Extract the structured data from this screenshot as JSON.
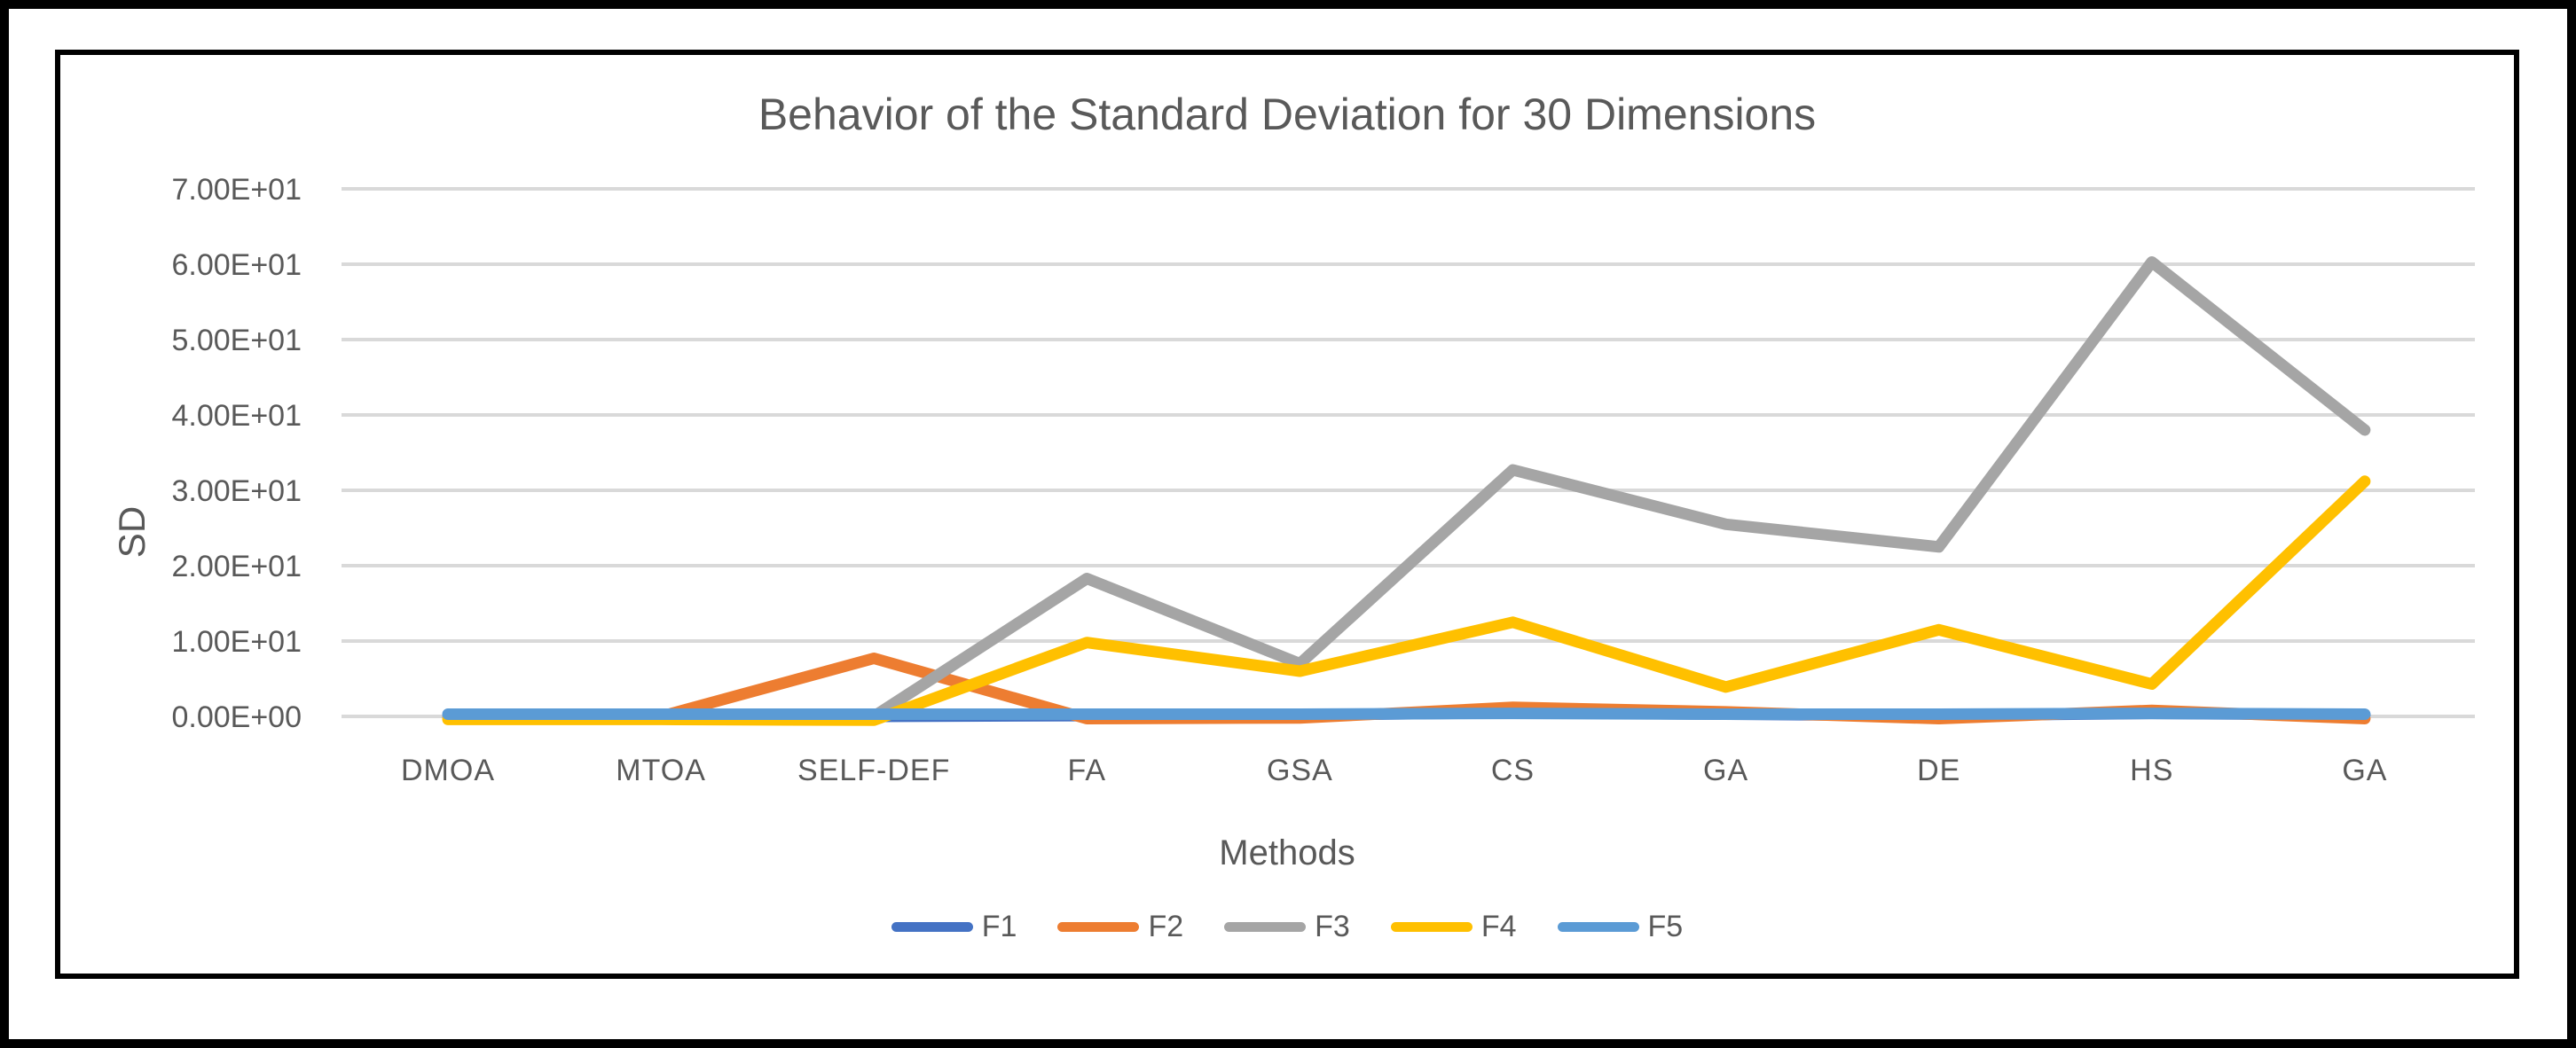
{
  "chart_data": {
    "type": "line",
    "title": "Behavior of the Standard Deviation for 30 Dimensions",
    "xlabel": "Methods",
    "ylabel": "SD",
    "categories": [
      "DMOA",
      "MTOA",
      "SELF-DEF",
      "FA",
      "GSA",
      "CS",
      "GA",
      "DE",
      "HS",
      "GA"
    ],
    "ytick_labels": [
      "0.00E+00",
      "1.00E+01",
      "2.00E+01",
      "3.00E+01",
      "4.00E+01",
      "5.00E+01",
      "6.00E+01",
      "7.00E+01"
    ],
    "ylim": [
      0,
      70
    ],
    "grid": true,
    "legend_position": "bottom",
    "background": "#FFFFFF",
    "border_color": "#000000",
    "text_color": "#595959",
    "gridline_color": "#D9D9D9",
    "series": [
      {
        "name": "F1",
        "color": "#4472C4",
        "values": [
          0,
          0,
          0,
          0.1,
          0.2,
          0.5,
          0.3,
          0.1,
          0.4,
          0.2
        ]
      },
      {
        "name": "F2",
        "color": "#ED7D31",
        "values": [
          0,
          0,
          7.7,
          -0.3,
          -0.2,
          1.2,
          0.6,
          -0.3,
          0.8,
          -0.3
        ]
      },
      {
        "name": "F3",
        "color": "#A5A5A5",
        "values": [
          0,
          0,
          0,
          18.3,
          7.0,
          32.7,
          25.5,
          22.5,
          60.3,
          38.0
        ]
      },
      {
        "name": "F4",
        "color": "#FFC000",
        "values": [
          -0.4,
          -0.4,
          -0.5,
          9.8,
          6.0,
          12.5,
          3.9,
          11.5,
          4.3,
          31.2
        ]
      },
      {
        "name": "F5",
        "color": "#5B9BD5",
        "values": [
          0.3,
          0.3,
          0.3,
          0.3,
          0.3,
          0.4,
          0.3,
          0.3,
          0.4,
          0.3
        ]
      }
    ]
  }
}
